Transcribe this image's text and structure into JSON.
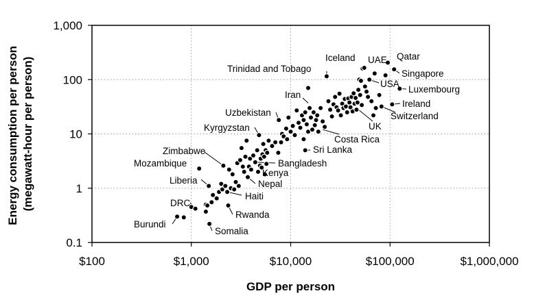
{
  "chart_data": {
    "type": "scatter",
    "xlabel": "GDP per person",
    "ylabel": [
      "Energy consumption per person",
      "(megawatt-hour per person)"
    ],
    "xscale": "log",
    "yscale": "log",
    "xlim": [
      100,
      1000000
    ],
    "ylim": [
      0.1,
      1000
    ],
    "grid": true,
    "x_ticks": [
      100,
      1000,
      10000,
      100000,
      1000000
    ],
    "x_tick_labels": [
      "$100",
      "$1,000",
      "$10,000",
      "$100,000",
      "$1,000,000"
    ],
    "y_ticks": [
      0.1,
      1,
      10,
      100,
      1000
    ],
    "y_tick_labels": [
      "0.1",
      "1",
      "10",
      "100",
      "1,000"
    ],
    "points": [
      [
        720,
        0.3
      ],
      [
        840,
        0.29
      ],
      [
        1000,
        0.45
      ],
      [
        1100,
        0.42
      ],
      [
        1200,
        2.3
      ],
      [
        1400,
        0.5
      ],
      [
        1400,
        0.37
      ],
      [
        1450,
        0.48
      ],
      [
        1500,
        1.1
      ],
      [
        1520,
        0.22
      ],
      [
        1600,
        0.55
      ],
      [
        1650,
        0.75
      ],
      [
        1800,
        0.65
      ],
      [
        1900,
        0.85
      ],
      [
        2000,
        1.2
      ],
      [
        2050,
        0.95
      ],
      [
        2100,
        2.6
      ],
      [
        2200,
        1.1
      ],
      [
        2300,
        0.85
      ],
      [
        2350,
        0.48
      ],
      [
        2400,
        2.2
      ],
      [
        2500,
        1.0
      ],
      [
        2600,
        1.8
      ],
      [
        2700,
        0.95
      ],
      [
        2800,
        1.3
      ],
      [
        2900,
        2.9
      ],
      [
        3000,
        1.1
      ],
      [
        3100,
        3.3
      ],
      [
        3200,
        5.5
      ],
      [
        3300,
        2.5
      ],
      [
        3400,
        2.0
      ],
      [
        3500,
        3.8
      ],
      [
        3600,
        7.5
      ],
      [
        3700,
        1.6
      ],
      [
        3800,
        2.5
      ],
      [
        3900,
        3.5
      ],
      [
        4000,
        2.2
      ],
      [
        4200,
        4.0
      ],
      [
        4400,
        3.0
      ],
      [
        4600,
        5.0
      ],
      [
        4700,
        2.0
      ],
      [
        4800,
        9.5
      ],
      [
        4900,
        2.6
      ],
      [
        5000,
        3.5
      ],
      [
        5100,
        2.4
      ],
      [
        5200,
        4.2
      ],
      [
        5300,
        6.5
      ],
      [
        5400,
        3.8
      ],
      [
        5500,
        1.8
      ],
      [
        5600,
        5.0
      ],
      [
        5700,
        2.8
      ],
      [
        5800,
        4.5
      ],
      [
        6000,
        7.5
      ],
      [
        6500,
        6.0
      ],
      [
        7000,
        7.0
      ],
      [
        7500,
        4.5
      ],
      [
        7600,
        18.0
      ],
      [
        8000,
        7.0
      ],
      [
        8200,
        10.0
      ],
      [
        8500,
        9.0
      ],
      [
        9000,
        12.5
      ],
      [
        9200,
        8.0
      ],
      [
        9500,
        20.0
      ],
      [
        10000,
        11.0
      ],
      [
        10500,
        14.0
      ],
      [
        11000,
        9.5
      ],
      [
        11500,
        27.0
      ],
      [
        12000,
        16.0
      ],
      [
        12500,
        13.0
      ],
      [
        13000,
        22.0
      ],
      [
        13500,
        18.0
      ],
      [
        13500,
        8.0
      ],
      [
        14000,
        25.0
      ],
      [
        14000,
        5.0
      ],
      [
        14500,
        15.0
      ],
      [
        15000,
        11.0
      ],
      [
        15000,
        70.0
      ],
      [
        15500,
        30.0
      ],
      [
        16000,
        20.0
      ],
      [
        16500,
        12.0
      ],
      [
        17000,
        25.0
      ],
      [
        17500,
        14.5
      ],
      [
        18000,
        18.0
      ],
      [
        18500,
        22.0
      ],
      [
        19000,
        11.0
      ],
      [
        20000,
        30.0
      ],
      [
        21000,
        17.0
      ],
      [
        22000,
        13.5
      ],
      [
        23000,
        115.0
      ],
      [
        24000,
        40.0
      ],
      [
        25000,
        28.0
      ],
      [
        26000,
        21.0
      ],
      [
        27000,
        35.0
      ],
      [
        28000,
        48.0
      ],
      [
        29000,
        31.0
      ],
      [
        30000,
        27.0
      ],
      [
        31000,
        55.0
      ],
      [
        32000,
        22.0
      ],
      [
        33000,
        36.0
      ],
      [
        34000,
        30.0
      ],
      [
        35000,
        44.0
      ],
      [
        36000,
        32.0
      ],
      [
        37000,
        25.0
      ],
      [
        38000,
        45.0
      ],
      [
        39000,
        38.0
      ],
      [
        40000,
        31.0
      ],
      [
        41000,
        48.0
      ],
      [
        42000,
        26.0
      ],
      [
        43000,
        56.0
      ],
      [
        44000,
        36.0
      ],
      [
        45000,
        46.0
      ],
      [
        46000,
        28.0
      ],
      [
        47000,
        38.0
      ],
      [
        48000,
        65.0
      ],
      [
        49000,
        100.0
      ],
      [
        50000,
        52.0
      ],
      [
        51000,
        95.0
      ],
      [
        52000,
        34.0
      ],
      [
        53000,
        160.0
      ],
      [
        55000,
        165.0
      ],
      [
        56000,
        75.0
      ],
      [
        58000,
        60.0
      ],
      [
        60000,
        48.0
      ],
      [
        62000,
        100.0
      ],
      [
        65000,
        40.0
      ],
      [
        68000,
        22.0
      ],
      [
        70000,
        130.0
      ],
      [
        72000,
        30.0
      ],
      [
        78000,
        52.0
      ],
      [
        82000,
        32.0
      ],
      [
        95000,
        205.0
      ],
      [
        105000,
        35.0
      ],
      [
        110000,
        155.0
      ],
      [
        125000,
        68.0
      ],
      [
        90000,
        120.0
      ]
    ],
    "annotations": [
      {
        "text": "Qatar",
        "x": 95000,
        "y": 205
      },
      {
        "text": "UAE",
        "x": 65000,
        "y": 165
      },
      {
        "text": "Iceland",
        "x": 53000,
        "y": 165
      },
      {
        "text": "Singapore",
        "x": 110000,
        "y": 155
      },
      {
        "text": "Trinidad and Tobago",
        "x": 23000,
        "y": 115
      },
      {
        "text": "USA",
        "x": 62000,
        "y": 100
      },
      {
        "text": "Luxembourg",
        "x": 125000,
        "y": 68
      },
      {
        "text": "Iran",
        "x": 15000,
        "y": 37
      },
      {
        "text": "Ireland",
        "x": 105000,
        "y": 35
      },
      {
        "text": "Switzerland",
        "x": 82000,
        "y": 32
      },
      {
        "text": "UK",
        "x": 47000,
        "y": 29
      },
      {
        "text": "Uzbekistan",
        "x": 7600,
        "y": 18
      },
      {
        "text": "Costa Rica",
        "x": 21000,
        "y": 12
      },
      {
        "text": "Kyrgyzstan",
        "x": 4800,
        "y": 9.5
      },
      {
        "text": "Sri Lanka",
        "x": 14000,
        "y": 5
      },
      {
        "text": "Zimbabwe",
        "x": 2100,
        "y": 2.6
      },
      {
        "text": "Bangladesh",
        "x": 4400,
        "y": 3
      },
      {
        "text": "Mozambique",
        "x": 1200,
        "y": 2.3
      },
      {
        "text": "Kenya",
        "x": 4700,
        "y": 2
      },
      {
        "text": "Nepal",
        "x": 3700,
        "y": 1.6
      },
      {
        "text": "Liberia",
        "x": 1500,
        "y": 1.1
      },
      {
        "text": "Haiti",
        "x": 2300,
        "y": 0.85
      },
      {
        "text": "DRC",
        "x": 1100,
        "y": 0.42
      },
      {
        "text": "Rwanda",
        "x": 2350,
        "y": 0.48
      },
      {
        "text": "Burundi",
        "x": 720,
        "y": 0.3
      },
      {
        "text": "Somalia",
        "x": 1520,
        "y": 0.22
      }
    ]
  }
}
